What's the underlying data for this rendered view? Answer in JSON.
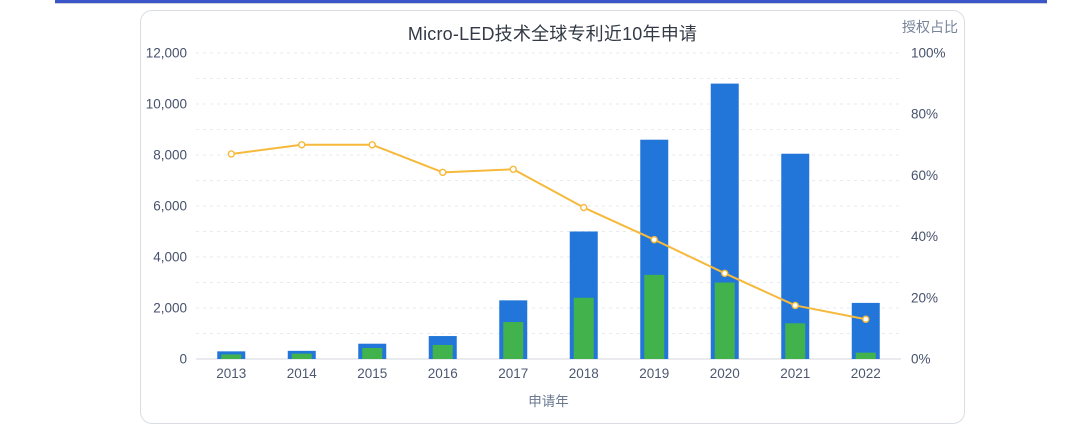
{
  "page": {
    "top_divider_color": "#3a56c8"
  },
  "chart_data": {
    "type": "bar",
    "title": "Micro-LED技术全球专利近10年申请",
    "xlabel": "申请年",
    "right_axis_title": "授权占比",
    "categories": [
      "2013",
      "2014",
      "2015",
      "2016",
      "2017",
      "2018",
      "2019",
      "2020",
      "2021",
      "2022"
    ],
    "series": [
      {
        "id": "bar-blue-total",
        "type": "bar",
        "axis": "left",
        "color": "#2276d9",
        "values": [
          300,
          320,
          600,
          900,
          2300,
          5000,
          8600,
          10800,
          8050,
          2200
        ]
      },
      {
        "id": "bar-green-inner",
        "type": "bar",
        "axis": "left",
        "color": "#41b24c",
        "values": [
          180,
          210,
          430,
          550,
          1450,
          2400,
          3300,
          3000,
          1400,
          250
        ]
      },
      {
        "id": "授权占比",
        "type": "line",
        "axis": "right",
        "color": "#f6b93b",
        "values": [
          67,
          70,
          70,
          61,
          62,
          49.5,
          39,
          28,
          17.5,
          13
        ]
      }
    ],
    "left_axis": {
      "min": 0,
      "max": 12000,
      "major_interval": 2000,
      "minor_interval": 1000,
      "tick_labels": [
        "0",
        "2,000",
        "4,000",
        "6,000",
        "8,000",
        "10,000",
        "12,000"
      ]
    },
    "right_axis": {
      "min": 0,
      "max": 100,
      "major_interval": 20,
      "tick_labels": [
        "0%",
        "20%",
        "40%",
        "60%",
        "80%",
        "100%"
      ]
    },
    "grid": {
      "style": "dashed",
      "color": "#e7eaef",
      "baseline_color": "#d3d7de"
    },
    "text_colors": {
      "ticks": "#46526b",
      "x_ticks": "#4d5870",
      "xlabel": "#6a7891"
    }
  }
}
